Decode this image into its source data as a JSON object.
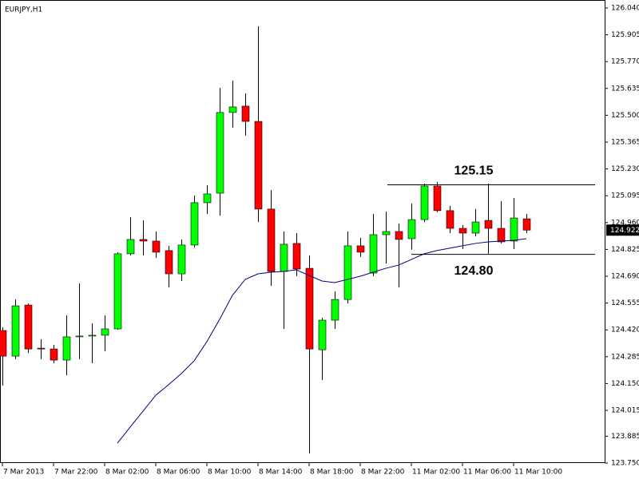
{
  "chart_data": {
    "type": "candlestick",
    "title": "EURJPY,H1",
    "categories": [
      "7 Mar 2013",
      null,
      null,
      null,
      "7 Mar 22:00",
      null,
      null,
      null,
      "8 Mar 02:00",
      null,
      null,
      null,
      "8 Mar 06:00",
      null,
      null,
      null,
      "8 Mar 10:00",
      null,
      null,
      null,
      "8 Mar 14:00",
      null,
      null,
      null,
      "8 Mar 18:00",
      null,
      null,
      null,
      "8 Mar 22:00",
      null,
      null,
      null,
      "11 Mar 02:00",
      null,
      null,
      null,
      "11 Mar 06:00",
      null,
      null,
      null,
      "11 Mar 10:00",
      null
    ],
    "open": [
      124.417,
      124.288,
      124.545,
      124.328,
      124.324,
      124.268,
      124.385,
      124.389,
      124.393,
      124.425,
      124.803,
      124.875,
      124.867,
      124.819,
      124.702,
      124.847,
      125.06,
      125.108,
      125.514,
      125.546,
      125.469,
      125.028,
      124.714,
      124.855,
      124.73,
      124.32,
      124.469,
      124.573,
      124.843,
      124.706,
      124.899,
      124.915,
      124.879,
      124.975,
      125.144,
      125.02,
      124.931,
      124.907,
      124.971,
      124.931,
      124.867,
      124.979
    ],
    "high": [
      124.433,
      124.573,
      124.553,
      124.373,
      124.345,
      124.493,
      124.654,
      124.453,
      124.493,
      124.811,
      124.987,
      124.971,
      124.915,
      124.843,
      124.875,
      125.096,
      125.148,
      125.638,
      125.674,
      125.61,
      125.948,
      125.124,
      124.915,
      124.907,
      124.795,
      124.481,
      124.614,
      124.915,
      124.883,
      125.003,
      125.015,
      124.955,
      125.056,
      125.156,
      125.164,
      125.044,
      124.947,
      125.028,
      125.156,
      125.068,
      125.084,
      125.003
    ],
    "low": [
      124.14,
      124.272,
      124.304,
      124.272,
      124.252,
      124.192,
      124.272,
      124.252,
      124.312,
      124.421,
      124.795,
      124.795,
      124.783,
      124.634,
      124.666,
      124.835,
      125.003,
      124.995,
      125.437,
      125.397,
      124.963,
      124.642,
      124.425,
      124.69,
      123.798,
      124.168,
      124.425,
      124.553,
      124.787,
      124.69,
      124.754,
      124.634,
      124.823,
      124.963,
      125.012,
      124.907,
      124.827,
      124.891,
      124.803,
      124.855,
      124.827,
      124.907
    ],
    "close": [
      124.288,
      124.541,
      124.324,
      124.324,
      124.268,
      124.385,
      124.389,
      124.393,
      124.425,
      124.803,
      124.875,
      124.867,
      124.811,
      124.702,
      124.847,
      125.06,
      125.104,
      125.514,
      125.542,
      125.469,
      125.028,
      124.714,
      124.851,
      124.726,
      124.324,
      124.469,
      124.573,
      124.843,
      124.811,
      124.899,
      124.915,
      124.875,
      124.975,
      125.144,
      125.02,
      124.931,
      124.907,
      124.963,
      124.931,
      124.863,
      124.983,
      124.922
    ],
    "moving_average": [
      null,
      null,
      null,
      null,
      null,
      null,
      null,
      null,
      null,
      123.85,
      123.931,
      124.011,
      124.091,
      124.144,
      124.2,
      124.264,
      124.361,
      124.473,
      124.594,
      124.674,
      124.702,
      124.71,
      124.714,
      124.722,
      124.694,
      124.666,
      124.658,
      124.674,
      124.69,
      124.71,
      124.73,
      124.746,
      124.774,
      124.803,
      124.819,
      124.831,
      124.843,
      124.855,
      124.863,
      124.867,
      124.871,
      124.879
    ],
    "up_color": "#00ff00",
    "down_color": "#ff0000",
    "ma_color": "#000080",
    "last_price": 124.922,
    "annotations": [
      {
        "text": "125.15",
        "value": 125.15
      },
      {
        "text": "124.80",
        "value": 124.8
      }
    ],
    "ylim": [
      123.75,
      126.08
    ],
    "yticks": [
      {
        "value": 126.04,
        "label": "126.040"
      },
      {
        "value": 125.905,
        "label": "125.905"
      },
      {
        "value": 125.77,
        "label": "125.770"
      },
      {
        "value": 125.635,
        "label": "125.635"
      },
      {
        "value": 125.5,
        "label": "125.500"
      },
      {
        "value": 125.365,
        "label": "125.365"
      },
      {
        "value": 125.23,
        "label": "125.230"
      },
      {
        "value": 125.095,
        "label": "125.095"
      },
      {
        "value": 124.96,
        "label": "124.960"
      },
      {
        "value": 124.825,
        "label": "124.825"
      },
      {
        "value": 124.69,
        "label": "124.690"
      },
      {
        "value": 124.555,
        "label": "124.555"
      },
      {
        "value": 124.42,
        "label": "124.420"
      },
      {
        "value": 124.285,
        "label": "124.285"
      },
      {
        "value": 124.15,
        "label": "124.150"
      },
      {
        "value": 124.015,
        "label": "124.015"
      },
      {
        "value": 123.885,
        "label": "123.885"
      },
      {
        "value": 123.75,
        "label": "123.750"
      }
    ]
  }
}
